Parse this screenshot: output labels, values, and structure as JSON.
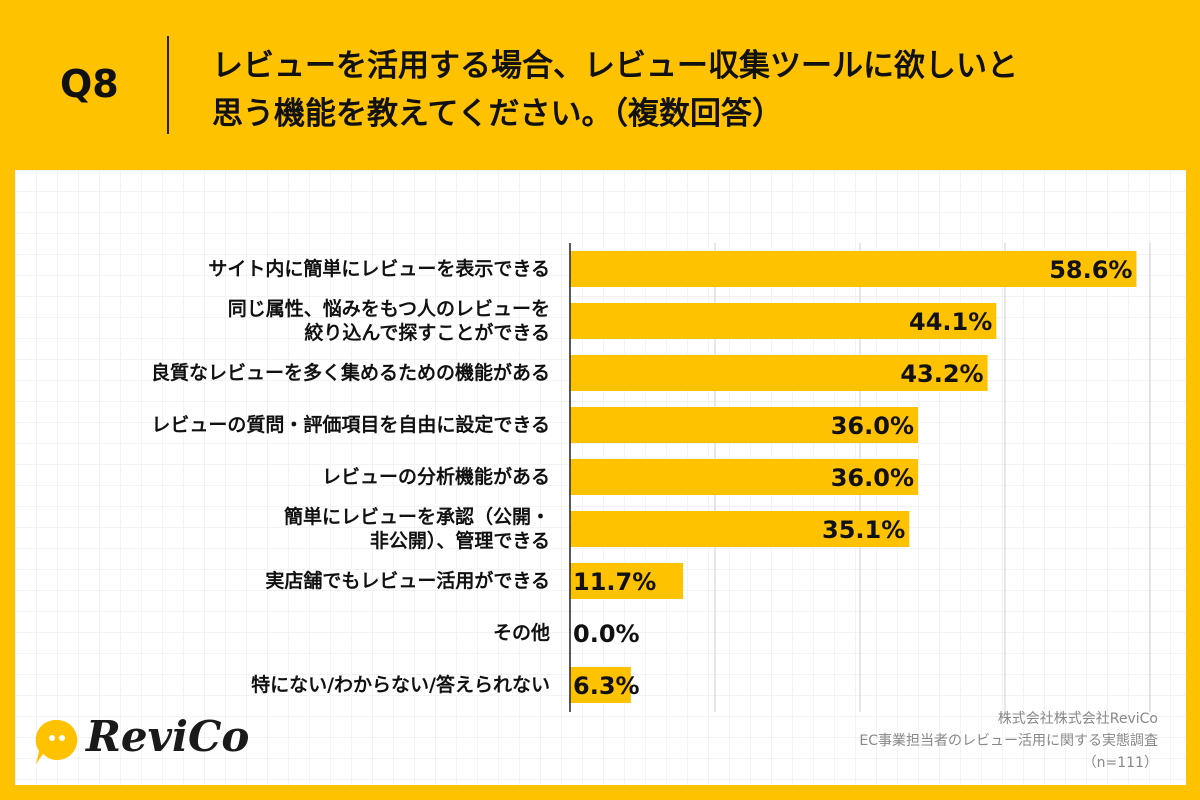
{
  "header": {
    "q": "Q8",
    "title_line1": "レビューを活用する場合、レビュー収集ツールに欲しいと",
    "title_line2": "思う機能を教えてください。（複数回答）"
  },
  "colors": {
    "background": "#FFC200",
    "bar": "#FFC200",
    "text": "#111111"
  },
  "chart_data": {
    "type": "bar",
    "orientation": "horizontal",
    "xlim": [
      0,
      60
    ],
    "grid": true,
    "categories": [
      "サイト内に簡単にレビューを表示できる",
      "同じ属性、悩みをもつ人のレビューを\n絞り込んで探すことができる",
      "良質なレビューを多く集めるための機能がある",
      "レビューの質問・評価項目を自由に設定できる",
      "レビューの分析機能がある",
      "簡単にレビューを承認（公開・\n非公開）、管理できる",
      "実店舗でもレビュー活用ができる",
      "その他",
      "特にない/わからない/答えられない"
    ],
    "values": [
      58.6,
      44.1,
      43.2,
      36.0,
      36.0,
      35.1,
      11.7,
      0.0,
      6.3
    ],
    "data_labels": [
      "58.6%",
      "44.1%",
      "43.2%",
      "36.0%",
      "36.0%",
      "35.1%",
      "11.7%",
      "0.0%",
      "6.3%"
    ]
  },
  "footer": {
    "company": "株式会社株式会社ReviCo",
    "survey": "EC事業担当者のレビュー活用に関する実態調査",
    "n": "（n=111）",
    "logo": "ReviCo"
  }
}
